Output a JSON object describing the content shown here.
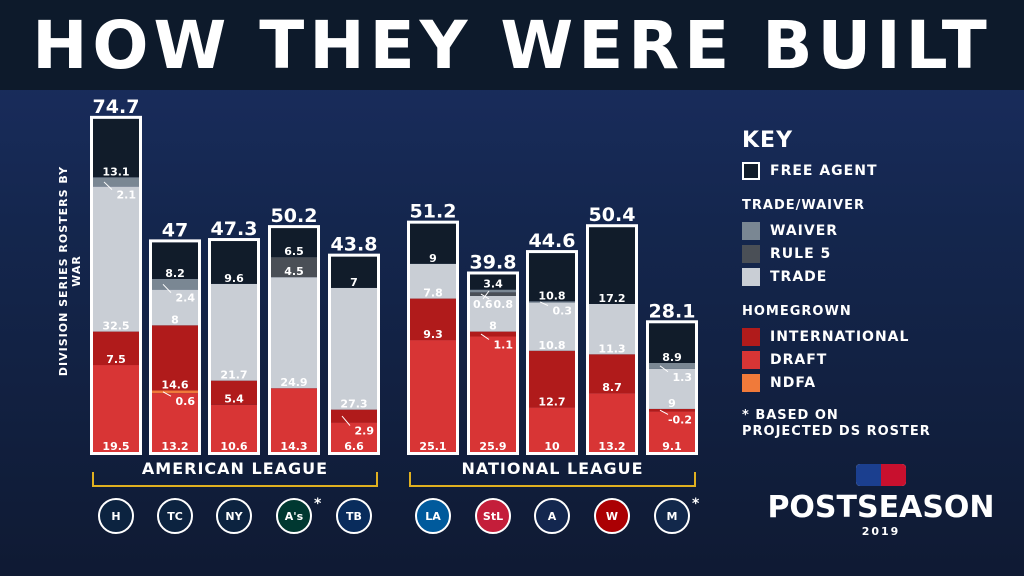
{
  "title": "HOW THEY WERE BUILT",
  "chart_data": {
    "type": "bar",
    "stacked": true,
    "title": "HOW THEY WERE BUILT",
    "ylabel": "DIVISION SERIES ROSTERS BY WAR",
    "series_order": [
      "draft",
      "ndfa",
      "international",
      "trade",
      "rule5",
      "waiver",
      "free_agent"
    ],
    "colors": {
      "free_agent": "#111c2a",
      "waiver": "#7a8793",
      "rule5": "#4a4f56",
      "trade": "#c9ced5",
      "international": "#b01b1b",
      "draft": "#d83535",
      "ndfa": "#f07a3a"
    },
    "leagues": [
      {
        "name": "AMERICAN LEAGUE"
      },
      {
        "name": "NATIONAL LEAGUE"
      }
    ],
    "teams": [
      {
        "team": "HOU",
        "logo": "H",
        "league": 0,
        "total": "74.7",
        "draft": 19.5,
        "international": 7.5,
        "trade": 32.5,
        "waiver": 2.1,
        "free_agent": 13.1
      },
      {
        "team": "MIN",
        "logo": "TC",
        "league": 0,
        "total": "47",
        "draft": 13.2,
        "international": 14.6,
        "ndfa": 0.6,
        "trade": 8,
        "waiver": 2.4,
        "free_agent": 8.2
      },
      {
        "team": "NYY",
        "logo": "NY",
        "league": 0,
        "total": "47.3",
        "draft": 10.6,
        "international": 5.4,
        "trade": 21.7,
        "free_agent": 9.6
      },
      {
        "team": "OAK",
        "logo": "A's",
        "league": 0,
        "total": "50.2",
        "draft": 14.3,
        "trade": 24.9,
        "rule5": 4.5,
        "free_agent": 6.5,
        "asterisk": true
      },
      {
        "team": "TB",
        "logo": "TB",
        "league": 0,
        "total": "43.8",
        "draft": 6.6,
        "international": 2.9,
        "trade": 27.3,
        "free_agent": 7
      },
      {
        "team": "LAD",
        "logo": "LA",
        "league": 1,
        "total": "51.2",
        "draft": 25.1,
        "international": 9.3,
        "trade": 7.8,
        "free_agent": 9
      },
      {
        "team": "STL",
        "logo": "StL",
        "league": 1,
        "total": "39.8",
        "draft": 25.9,
        "international": 1.1,
        "trade": 8,
        "waiver": 0.6,
        "rule5": 0.8,
        "free_agent": 3.4
      },
      {
        "team": "ATL",
        "logo": "A",
        "league": 1,
        "total": "44.6",
        "draft": 10,
        "international": 12.7,
        "trade": 10.8,
        "waiver": 0.3,
        "free_agent": 10.8
      },
      {
        "team": "WSH",
        "logo": "W",
        "league": 1,
        "total": "50.4",
        "draft": 13.2,
        "international": 8.7,
        "trade": 11.3,
        "free_agent": 17.2
      },
      {
        "team": "MIL",
        "logo": "M",
        "league": 1,
        "total": "28.1",
        "draft": 9.1,
        "international": -0.2,
        "trade": 9,
        "waiver": 1.3,
        "free_agent": 8.9,
        "asterisk": true
      }
    ]
  },
  "key": {
    "title": "KEY",
    "free_agent": "FREE AGENT",
    "trade_header": "TRADE/WAIVER",
    "waiver": "WAIVER",
    "rule5": "RULE 5",
    "trade": "TRADE",
    "home_header": "HOMEGROWN",
    "international": "INTERNATIONAL",
    "draft": "DRAFT",
    "ndfa": "NDFA",
    "note": "* BASED ON PROJECTED DS ROSTER"
  },
  "branding": {
    "word": "POSTSEASON",
    "year": "2019"
  }
}
